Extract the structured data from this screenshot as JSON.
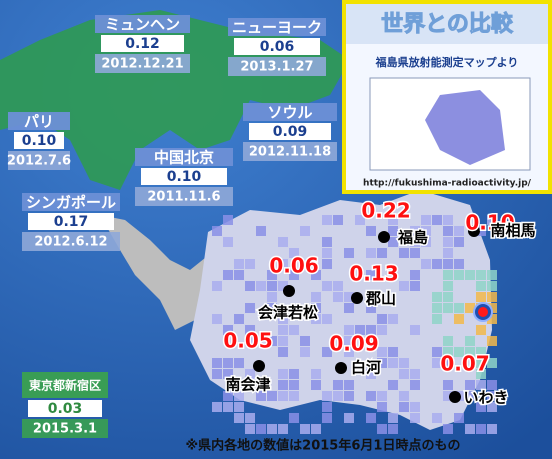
{
  "world_cities": [
    {
      "name": "ミュンヘン",
      "value": "0.12",
      "date": "2012.12.21"
    },
    {
      "name": "ニューヨーク",
      "value": "0.06",
      "date": "2013.1.27"
    },
    {
      "name": "パリ",
      "value": "0.10",
      "date": "2012.7.6"
    },
    {
      "name": "ソウル",
      "value": "0.09",
      "date": "2012.11.18"
    },
    {
      "name": "中国北京",
      "value": "0.10",
      "date": "2011.11.6"
    },
    {
      "name": "シンガポール",
      "value": "0.17",
      "date": "2012.6.12"
    },
    {
      "name": "東京都新宿区",
      "value": "0.03",
      "date": "2015.3.1"
    }
  ],
  "inset": {
    "title": "世界との比較",
    "subtitle": "福島県放射能測定マップより",
    "url": "http://fukushima-radioactivity.jp/"
  },
  "fukushima_points": [
    {
      "name": "福島",
      "value": "0.22"
    },
    {
      "name": "南相馬",
      "value": "0.10"
    },
    {
      "name": "会津若松",
      "value": "0.06"
    },
    {
      "name": "郡山",
      "value": "0.13"
    },
    {
      "name": "白河",
      "value": "0.09"
    },
    {
      "name": "南会津",
      "value": "0.05"
    },
    {
      "name": "いわき",
      "value": "0.07"
    }
  ],
  "note": "※県内各地の数値は2015年6月1日時点のもの"
}
